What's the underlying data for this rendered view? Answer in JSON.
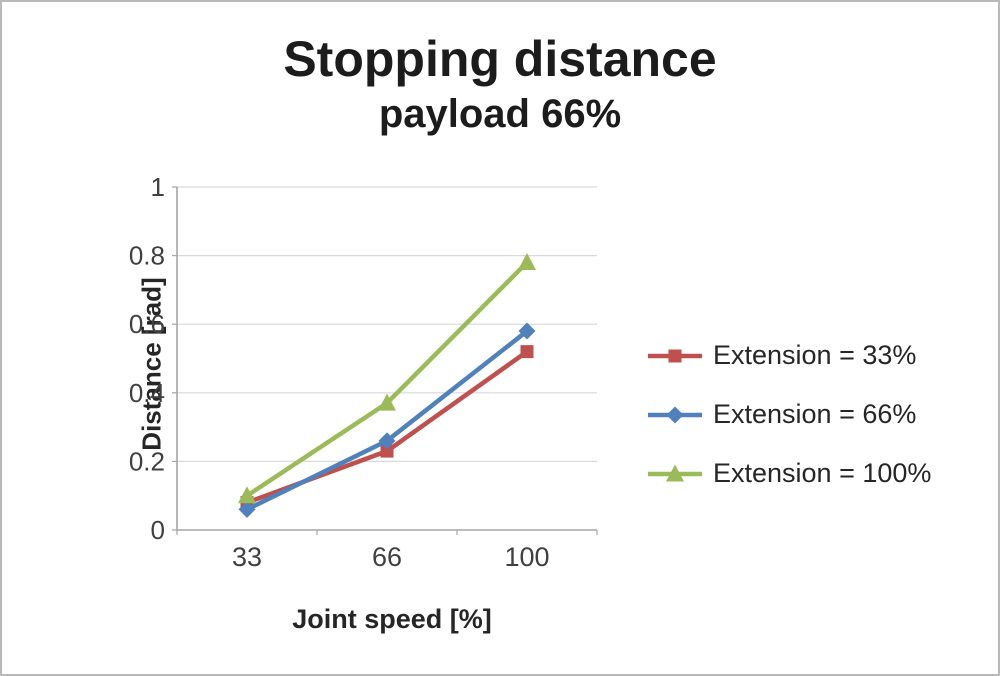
{
  "chart_data": {
    "type": "line",
    "title": "Stopping distance",
    "subtitle": "payload 66%",
    "xlabel": "Joint speed [%]",
    "ylabel": "Distance [rad]",
    "categories": [
      "33",
      "66",
      "100"
    ],
    "ylim": [
      0,
      1
    ],
    "ytick_values": [
      0,
      0.2,
      0.4,
      0.6,
      0.8,
      1
    ],
    "ytick_labels": [
      "0",
      "0.2",
      "0.4",
      "0.6",
      "0.8",
      "1"
    ],
    "grid": "horizontal",
    "legend_position": "right",
    "series": [
      {
        "name": "Extension = 33%",
        "color": "#c0504d",
        "marker": "square",
        "values": [
          0.08,
          0.23,
          0.52
        ]
      },
      {
        "name": "Extension = 66%",
        "color": "#4f81bd",
        "marker": "diamond",
        "values": [
          0.06,
          0.26,
          0.58
        ]
      },
      {
        "name": "Extension = 100%",
        "color": "#9bbb59",
        "marker": "triangle",
        "values": [
          0.1,
          0.37,
          0.78
        ]
      }
    ]
  }
}
